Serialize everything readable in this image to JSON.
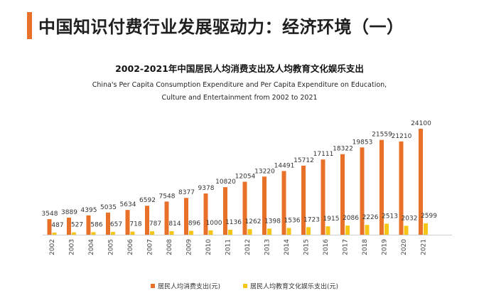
{
  "page": {
    "title": "中国知识付费行业发展驱动力：经济环境（一）"
  },
  "colors": {
    "accent": "#e8712a",
    "series_consumption": "#e8712a",
    "series_education": "#f5c518"
  },
  "chart_data": {
    "type": "bar",
    "title": "2002-2021年中国居民人均消费支出及人均教育文化娱乐支出",
    "subtitle_line1": "China's Per Capita Consumption Expenditure and Per Capita Expenditure on Education,",
    "subtitle_line2": "Culture and Entertainment from 2002 to 2021",
    "categories": [
      "2002",
      "2003",
      "2004",
      "2005",
      "2006",
      "2007",
      "2008",
      "2009",
      "2010",
      "2011",
      "2012",
      "2013",
      "2014",
      "2015",
      "2016",
      "2017",
      "2018",
      "2019",
      "2020",
      "2021"
    ],
    "series": [
      {
        "name": "居民人均消费支出(元)",
        "values": [
          3548,
          3889,
          4395,
          5035,
          5634,
          6592,
          7548,
          8377,
          9378,
          10820,
          12054,
          13220,
          14491,
          15712,
          17111,
          18322,
          19853,
          21559,
          21210,
          24100
        ]
      },
      {
        "name": "居民人均教育文化娱乐支出(元)",
        "values": [
          487,
          527,
          586,
          657,
          718,
          787,
          814,
          896,
          1000,
          1136,
          1262,
          1398,
          1536,
          1723,
          1915,
          2086,
          2226,
          2513,
          2032,
          2599
        ]
      }
    ],
    "ylim": [
      0,
      24100
    ],
    "grid": false,
    "legend_position": "bottom"
  }
}
